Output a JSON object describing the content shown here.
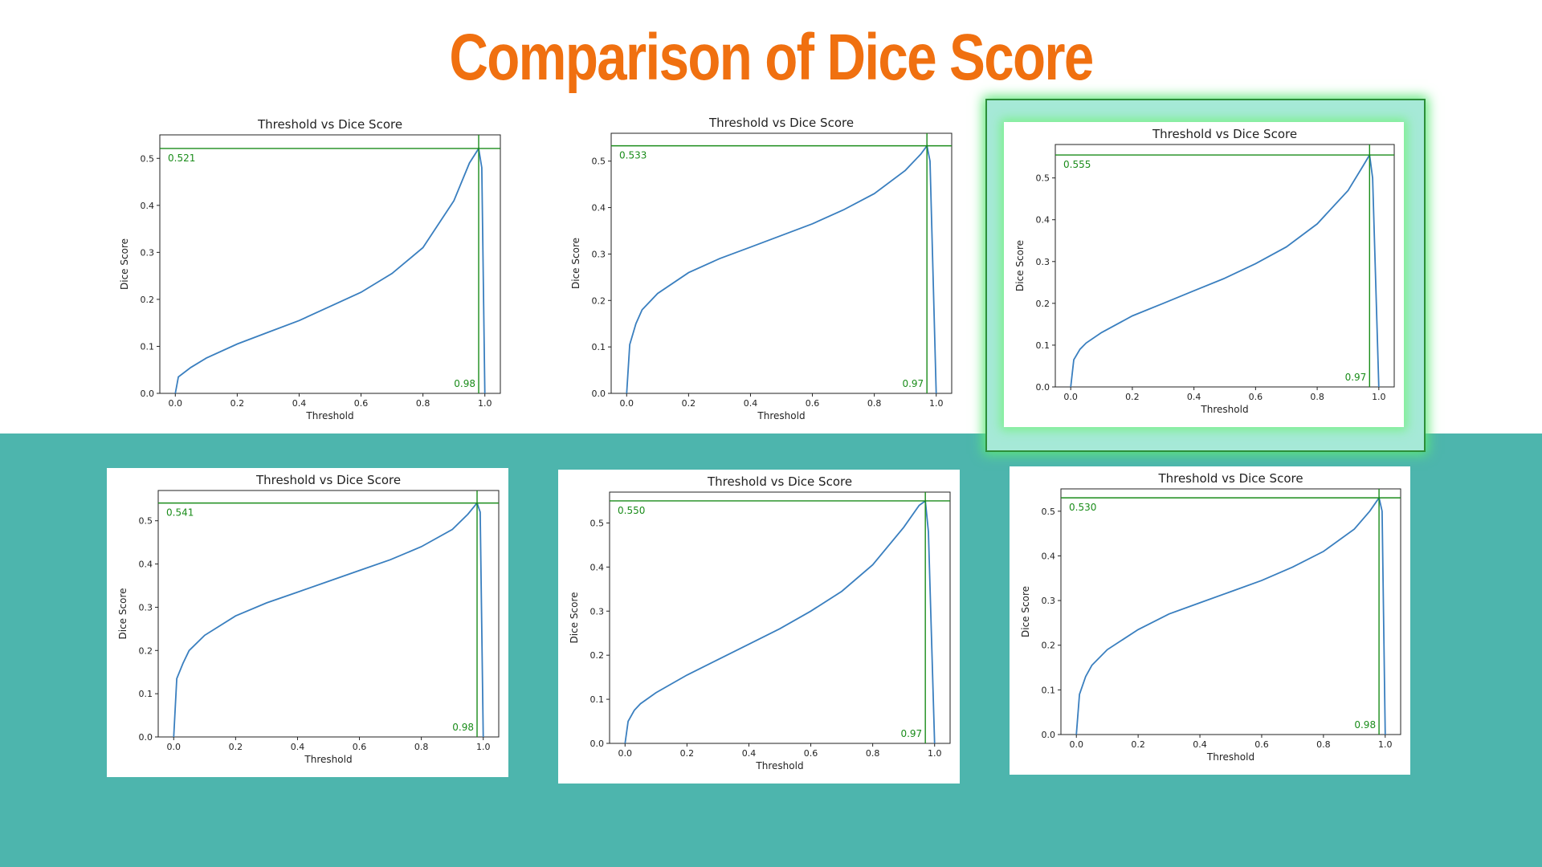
{
  "slide": {
    "title": "Comparison of Dice Score",
    "accent_color": "#f07010",
    "band_color": "#4db5ad",
    "highlight_color": "#a6e9d7"
  },
  "chart_data": [
    {
      "type": "line",
      "title": "Threshold vs Dice Score",
      "xlabel": "Threshold",
      "ylabel": "Dice Score",
      "xlim": [
        -0.05,
        1.05
      ],
      "ylim": [
        0,
        0.55
      ],
      "xticks": [
        "0.0",
        "0.2",
        "0.4",
        "0.6",
        "0.8",
        "1.0"
      ],
      "yticks": [
        "0.0",
        "0.1",
        "0.2",
        "0.3",
        "0.4",
        "0.5"
      ],
      "x": [
        0.0,
        0.01,
        0.05,
        0.1,
        0.2,
        0.3,
        0.4,
        0.5,
        0.6,
        0.7,
        0.8,
        0.9,
        0.95,
        0.98,
        0.99,
        1.0
      ],
      "y": [
        0.0,
        0.035,
        0.055,
        0.075,
        0.105,
        0.13,
        0.155,
        0.185,
        0.215,
        0.255,
        0.31,
        0.41,
        0.49,
        0.521,
        0.48,
        0.0
      ],
      "best_threshold": 0.98,
      "best_score": 0.521,
      "best_threshold_label": "0.98",
      "best_score_label": "0.521",
      "line_color": "#3a7fbf",
      "marker_color": "#1a8c1a"
    },
    {
      "type": "line",
      "title": "Threshold vs Dice Score",
      "xlabel": "Threshold",
      "ylabel": "Dice Score",
      "xlim": [
        -0.05,
        1.05
      ],
      "ylim": [
        0,
        0.56
      ],
      "xticks": [
        "0.0",
        "0.2",
        "0.4",
        "0.6",
        "0.8",
        "1.0"
      ],
      "yticks": [
        "0.0",
        "0.1",
        "0.2",
        "0.3",
        "0.4",
        "0.5"
      ],
      "x": [
        0.0,
        0.01,
        0.03,
        0.05,
        0.1,
        0.2,
        0.3,
        0.4,
        0.5,
        0.6,
        0.7,
        0.8,
        0.9,
        0.95,
        0.97,
        0.98,
        1.0
      ],
      "y": [
        0.0,
        0.105,
        0.15,
        0.18,
        0.215,
        0.26,
        0.29,
        0.315,
        0.34,
        0.365,
        0.395,
        0.43,
        0.48,
        0.515,
        0.533,
        0.5,
        0.0
      ],
      "best_threshold": 0.97,
      "best_score": 0.533,
      "best_threshold_label": "0.97",
      "best_score_label": "0.533",
      "line_color": "#3a7fbf",
      "marker_color": "#1a8c1a"
    },
    {
      "type": "line",
      "title": "Threshold vs Dice Score",
      "xlabel": "Threshold",
      "ylabel": "Dice Score",
      "xlim": [
        -0.05,
        1.05
      ],
      "ylim": [
        0,
        0.58
      ],
      "xticks": [
        "0.0",
        "0.2",
        "0.4",
        "0.6",
        "0.8",
        "1.0"
      ],
      "yticks": [
        "0.0",
        "0.1",
        "0.2",
        "0.3",
        "0.4",
        "0.5"
      ],
      "x": [
        0.0,
        0.01,
        0.03,
        0.05,
        0.1,
        0.2,
        0.3,
        0.4,
        0.5,
        0.6,
        0.7,
        0.8,
        0.9,
        0.95,
        0.97,
        0.98,
        1.0
      ],
      "y": [
        0.0,
        0.065,
        0.09,
        0.105,
        0.13,
        0.17,
        0.2,
        0.23,
        0.26,
        0.295,
        0.335,
        0.39,
        0.47,
        0.53,
        0.555,
        0.5,
        0.0
      ],
      "best_threshold": 0.97,
      "best_score": 0.555,
      "best_threshold_label": "0.97",
      "best_score_label": "0.555",
      "line_color": "#3a7fbf",
      "marker_color": "#1a8c1a"
    },
    {
      "type": "line",
      "title": "Threshold vs Dice Score",
      "xlabel": "Threshold",
      "ylabel": "Dice Score",
      "xlim": [
        -0.05,
        1.05
      ],
      "ylim": [
        0,
        0.57
      ],
      "xticks": [
        "0.0",
        "0.2",
        "0.4",
        "0.6",
        "0.8",
        "1.0"
      ],
      "yticks": [
        "0.0",
        "0.1",
        "0.2",
        "0.3",
        "0.4",
        "0.5"
      ],
      "x": [
        0.0,
        0.01,
        0.03,
        0.05,
        0.1,
        0.2,
        0.3,
        0.4,
        0.5,
        0.6,
        0.7,
        0.8,
        0.9,
        0.95,
        0.98,
        0.99,
        1.0
      ],
      "y": [
        0.0,
        0.135,
        0.17,
        0.2,
        0.235,
        0.28,
        0.31,
        0.335,
        0.36,
        0.385,
        0.41,
        0.44,
        0.48,
        0.515,
        0.541,
        0.52,
        0.0
      ],
      "best_threshold": 0.98,
      "best_score": 0.541,
      "best_threshold_label": "0.98",
      "best_score_label": "0.541",
      "line_color": "#3a7fbf",
      "marker_color": "#1a8c1a"
    },
    {
      "type": "line",
      "title": "Threshold vs Dice Score",
      "xlabel": "Threshold",
      "ylabel": "Dice Score",
      "xlim": [
        -0.05,
        1.05
      ],
      "ylim": [
        0,
        0.57
      ],
      "xticks": [
        "0.0",
        "0.2",
        "0.4",
        "0.6",
        "0.8",
        "1.0"
      ],
      "yticks": [
        "0.0",
        "0.1",
        "0.2",
        "0.3",
        "0.4",
        "0.5"
      ],
      "x": [
        0.0,
        0.01,
        0.03,
        0.05,
        0.1,
        0.2,
        0.3,
        0.4,
        0.5,
        0.6,
        0.7,
        0.8,
        0.9,
        0.95,
        0.97,
        0.98,
        1.0
      ],
      "y": [
        0.0,
        0.05,
        0.075,
        0.09,
        0.115,
        0.155,
        0.19,
        0.225,
        0.26,
        0.3,
        0.345,
        0.405,
        0.49,
        0.54,
        0.55,
        0.48,
        0.0
      ],
      "best_threshold": 0.97,
      "best_score": 0.55,
      "best_threshold_label": "0.97",
      "best_score_label": "0.550",
      "line_color": "#3a7fbf",
      "marker_color": "#1a8c1a"
    },
    {
      "type": "line",
      "title": "Threshold vs Dice Score",
      "xlabel": "Threshold",
      "ylabel": "Dice Score",
      "xlim": [
        -0.05,
        1.05
      ],
      "ylim": [
        0,
        0.55
      ],
      "xticks": [
        "0.0",
        "0.2",
        "0.4",
        "0.6",
        "0.8",
        "1.0"
      ],
      "yticks": [
        "0.0",
        "0.1",
        "0.2",
        "0.3",
        "0.4",
        "0.5"
      ],
      "x": [
        0.0,
        0.01,
        0.03,
        0.05,
        0.1,
        0.2,
        0.3,
        0.4,
        0.5,
        0.6,
        0.7,
        0.8,
        0.9,
        0.95,
        0.98,
        0.99,
        1.0
      ],
      "y": [
        0.0,
        0.09,
        0.13,
        0.155,
        0.19,
        0.235,
        0.27,
        0.295,
        0.32,
        0.345,
        0.375,
        0.41,
        0.46,
        0.5,
        0.53,
        0.5,
        0.0
      ],
      "best_threshold": 0.98,
      "best_score": 0.53,
      "best_threshold_label": "0.98",
      "best_score_label": "0.530",
      "line_color": "#3a7fbf",
      "marker_color": "#1a8c1a"
    }
  ]
}
